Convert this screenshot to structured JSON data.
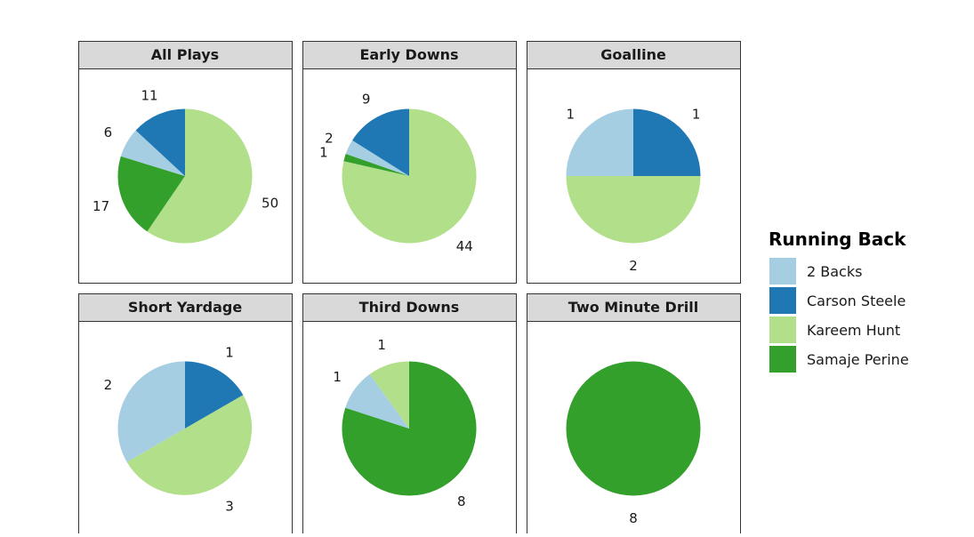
{
  "chart_data": {
    "type": "pie",
    "title": "",
    "legend": {
      "title": "Running Back",
      "position": "right",
      "entries": [
        {
          "name": "2 Backs",
          "color": "#a6cee3"
        },
        {
          "name": "Carson Steele",
          "color": "#1f78b4"
        },
        {
          "name": "Kareem Hunt",
          "color": "#b2df8a"
        },
        {
          "name": "Samaje Perine",
          "color": "#33a02c"
        }
      ]
    },
    "panels": [
      {
        "label": "All Plays",
        "slices": [
          {
            "series": "Kareem Hunt",
            "value": 50
          },
          {
            "series": "Samaje Perine",
            "value": 17
          },
          {
            "series": "2 Backs",
            "value": 6
          },
          {
            "series": "Carson Steele",
            "value": 11
          }
        ]
      },
      {
        "label": "Early Downs",
        "slices": [
          {
            "series": "Kareem Hunt",
            "value": 44
          },
          {
            "series": "Samaje Perine",
            "value": 1
          },
          {
            "series": "2 Backs",
            "value": 2
          },
          {
            "series": "Carson Steele",
            "value": 9
          }
        ]
      },
      {
        "label": "Goalline",
        "slices": [
          {
            "series": "Carson Steele",
            "value": 1
          },
          {
            "series": "Kareem Hunt",
            "value": 2
          },
          {
            "series": "2 Backs",
            "value": 1
          }
        ]
      },
      {
        "label": "Short Yardage",
        "slices": [
          {
            "series": "Carson Steele",
            "value": 1
          },
          {
            "series": "Kareem Hunt",
            "value": 3
          },
          {
            "series": "2 Backs",
            "value": 2
          }
        ]
      },
      {
        "label": "Third Downs",
        "slices": [
          {
            "series": "Samaje Perine",
            "value": 8
          },
          {
            "series": "2 Backs",
            "value": 1
          },
          {
            "series": "Kareem Hunt",
            "value": 1
          }
        ]
      },
      {
        "label": "Two Minute Drill",
        "slices": [
          {
            "series": "Samaje Perine",
            "value": 8
          }
        ]
      }
    ]
  }
}
